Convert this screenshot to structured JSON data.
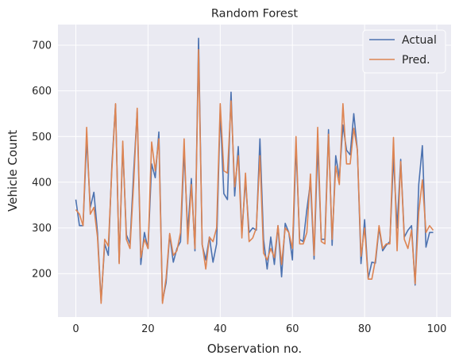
{
  "chart_data": {
    "type": "line",
    "title": "Random Forest",
    "xlabel": "Observation no.",
    "ylabel": "Vehicle Count",
    "xlim": [
      -4.95,
      103.95
    ],
    "ylim": [
      105,
      745
    ],
    "xticks": [
      0,
      20,
      40,
      60,
      80,
      100
    ],
    "yticks": [
      200,
      300,
      400,
      500,
      600,
      700
    ],
    "grid": true,
    "legend_position": "top-right",
    "x": [
      0,
      1,
      2,
      3,
      4,
      5,
      6,
      7,
      8,
      9,
      10,
      11,
      12,
      13,
      14,
      15,
      16,
      17,
      18,
      19,
      20,
      21,
      22,
      23,
      24,
      25,
      26,
      27,
      28,
      29,
      30,
      31,
      32,
      33,
      34,
      35,
      36,
      37,
      38,
      39,
      40,
      41,
      42,
      43,
      44,
      45,
      46,
      47,
      48,
      49,
      50,
      51,
      52,
      53,
      54,
      55,
      56,
      57,
      58,
      59,
      60,
      61,
      62,
      63,
      64,
      65,
      66,
      67,
      68,
      69,
      70,
      71,
      72,
      73,
      74,
      75,
      76,
      77,
      78,
      79,
      80,
      81,
      82,
      83,
      84,
      85,
      86,
      87,
      88,
      89,
      90,
      91,
      92,
      93,
      94,
      95,
      96,
      97,
      98,
      99
    ],
    "series": [
      {
        "name": "Actual",
        "color": "#4c72b0",
        "values": [
          362,
          305,
          305,
          495,
          345,
          378,
          290,
          140,
          265,
          240,
          440,
          570,
          225,
          480,
          285,
          265,
          420,
          555,
          220,
          290,
          255,
          440,
          410,
          510,
          140,
          180,
          285,
          225,
          255,
          270,
          470,
          290,
          408,
          250,
          715,
          263,
          230,
          280,
          225,
          265,
          555,
          375,
          362,
          597,
          370,
          478,
          288,
          405,
          290,
          300,
          295,
          495,
          275,
          210,
          280,
          220,
          305,
          193,
          310,
          290,
          230,
          480,
          275,
          270,
          340,
          400,
          232,
          480,
          275,
          275,
          515,
          262,
          458,
          410,
          525,
          470,
          460,
          550,
          470,
          222,
          318,
          190,
          225,
          223,
          300,
          250,
          262,
          270,
          455,
          300,
          450,
          280,
          295,
          305,
          175,
          395,
          480,
          258,
          290,
          290
        ]
      },
      {
        "name": "Pred.",
        "color": "#dd8452",
        "values": [
          340,
          330,
          305,
          520,
          330,
          345,
          280,
          135,
          275,
          260,
          430,
          572,
          222,
          490,
          275,
          255,
          395,
          562,
          235,
          275,
          255,
          488,
          425,
          495,
          135,
          190,
          288,
          240,
          250,
          290,
          495,
          265,
          395,
          255,
          690,
          265,
          210,
          280,
          270,
          300,
          572,
          425,
          420,
          578,
          390,
          458,
          278,
          420,
          270,
          278,
          300,
          458,
          245,
          230,
          255,
          235,
          305,
          220,
          300,
          290,
          255,
          500,
          265,
          265,
          290,
          418,
          240,
          520,
          270,
          265,
          505,
          275,
          435,
          395,
          572,
          440,
          440,
          518,
          470,
          238,
          300,
          188,
          188,
          230,
          305,
          255,
          265,
          265,
          498,
          250,
          445,
          275,
          255,
          295,
          178,
          335,
          405,
          290,
          305,
          295
        ]
      }
    ]
  }
}
